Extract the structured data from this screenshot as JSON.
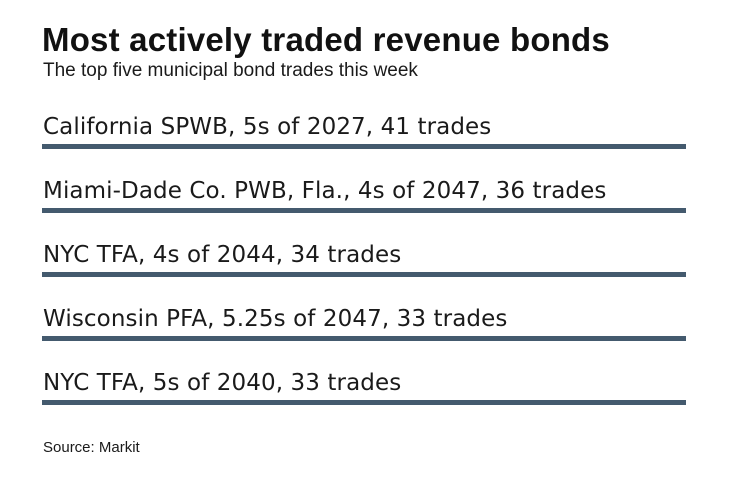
{
  "title": "Most actively traded revenue bonds",
  "subtitle": "The top five municipal bond trades this week",
  "source": "Source: Markit",
  "colors": {
    "bar": "#445a6e",
    "text": "#1a1a1a"
  },
  "chart_data": {
    "type": "table",
    "title": "Most actively traded revenue bonds",
    "subtitle": "The top five municipal bond trades this week",
    "rows": [
      {
        "label": "California SPWB, 5s of 2027, 41 trades",
        "issuer": "California SPWB",
        "coupon": "5s",
        "maturity": 2027,
        "trades": 41
      },
      {
        "label": "Miami-Dade Co. PWB, Fla., 4s of 2047, 36 trades",
        "issuer": "Miami-Dade Co. PWB, Fla.",
        "coupon": "4s",
        "maturity": 2047,
        "trades": 36
      },
      {
        "label": "NYC TFA, 4s of 2044, 34 trades",
        "issuer": "NYC TFA",
        "coupon": "4s",
        "maturity": 2044,
        "trades": 34
      },
      {
        "label": "Wisconsin PFA, 5.25s of 2047, 33 trades",
        "issuer": "Wisconsin PFA",
        "coupon": "5.25s",
        "maturity": 2047,
        "trades": 33
      },
      {
        "label": "NYC TFA, 5s of 2040, 33 trades",
        "issuer": "NYC TFA",
        "coupon": "5s",
        "maturity": 2040,
        "trades": 33
      }
    ],
    "source": "Source: Markit"
  }
}
